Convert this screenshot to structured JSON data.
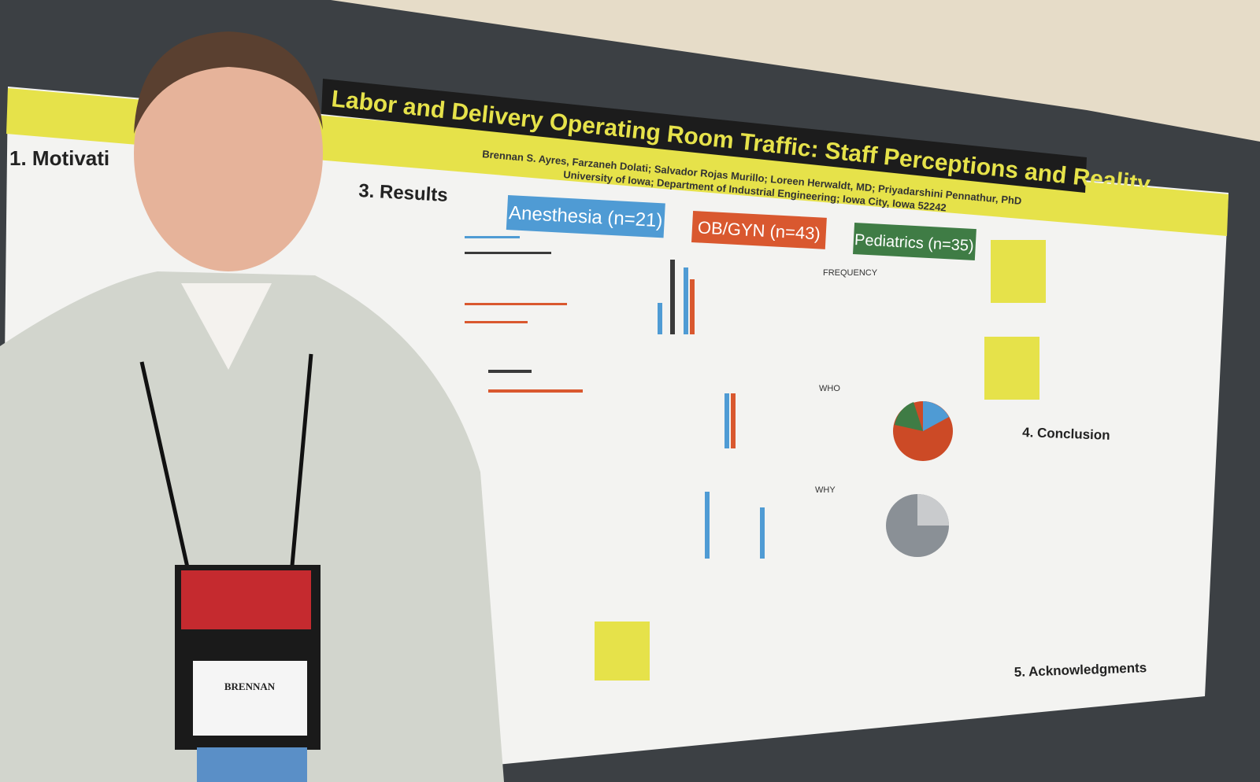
{
  "poster": {
    "title": "Labor and Delivery Operating Room Traffic: Staff Perceptions and Reality",
    "authors": "Brennan S. Ayres, Farzaneh Dolati; Salvador Rojas Murillo; Loreen Herwaldt, MD; Priyadarshini Pennathur, PhD",
    "affiliation": "University of Iowa; Department of Industrial Engineering; Iowa City, Iowa 52242",
    "sections": [
      "1. Motivati",
      "3. Results",
      "4. Conclusion",
      "5. Acknowledgments"
    ],
    "groups": [
      "Anesthesia (n=21)",
      "OB/GYN (n=43)",
      "Pediatrics (n=35)"
    ],
    "side_labels": [
      "FREQUENCY",
      "WHO",
      "WHY"
    ]
  },
  "badge": {
    "name": "BRENNAN"
  }
}
